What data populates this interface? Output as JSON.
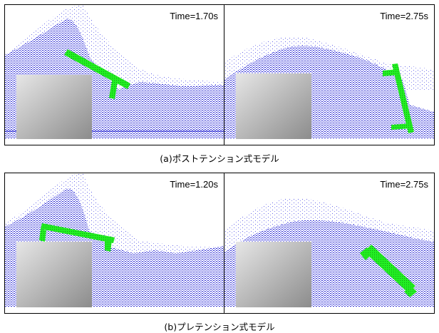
{
  "colors": {
    "fluid": "#3a3ad8",
    "structure": "#22ee22",
    "block_light": "#e8e8e8",
    "block_dark": "#8e8e8e"
  },
  "rows": [
    {
      "caption": "(a)ポストテンション式モデル",
      "panels": [
        {
          "time_label": "Time=1.70s"
        },
        {
          "time_label": "Time=2.75s"
        }
      ]
    },
    {
      "caption": "(b)プレテンション式モデル",
      "panels": [
        {
          "time_label": "Time=1.20s"
        },
        {
          "time_label": "Time=2.75s"
        }
      ]
    }
  ]
}
